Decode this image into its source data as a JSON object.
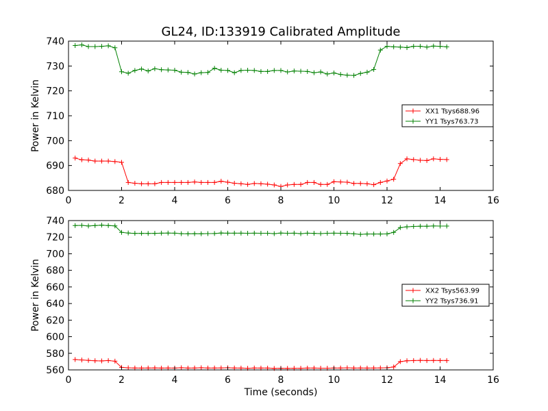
{
  "chart_data": [
    {
      "type": "line",
      "title": "GL24, ID:133919 Calibrated Amplitude",
      "xlabel": "",
      "ylabel": "Power in Kelvin",
      "xlim": [
        0,
        16
      ],
      "ylim": [
        680,
        740
      ],
      "xticks": [
        0,
        2,
        4,
        6,
        8,
        10,
        12,
        14,
        16
      ],
      "yticks": [
        680,
        690,
        700,
        710,
        720,
        730,
        740
      ],
      "legend_position": "center-right",
      "x": [
        0.25,
        0.5,
        0.75,
        1.0,
        1.25,
        1.5,
        1.75,
        2.0,
        2.25,
        2.5,
        2.75,
        3.0,
        3.25,
        3.5,
        3.75,
        4.0,
        4.25,
        4.5,
        4.75,
        5.0,
        5.25,
        5.5,
        5.75,
        6.0,
        6.25,
        6.5,
        6.75,
        7.0,
        7.25,
        7.5,
        7.75,
        8.0,
        8.25,
        8.5,
        8.75,
        9.0,
        9.25,
        9.5,
        9.75,
        10.0,
        10.25,
        10.5,
        10.75,
        11.0,
        11.25,
        11.5,
        11.75,
        12.0,
        12.25,
        12.5,
        12.75,
        13.0,
        13.25,
        13.5,
        13.75,
        14.0,
        14.25
      ],
      "series": [
        {
          "name": "XX1 Tsys688.96",
          "color": "#ff0000",
          "values": [
            693.0,
            692.3,
            692.2,
            691.8,
            691.8,
            691.8,
            691.6,
            691.3,
            683.2,
            682.9,
            682.7,
            682.7,
            682.7,
            683.2,
            683.2,
            683.2,
            683.2,
            683.2,
            683.4,
            683.2,
            683.2,
            683.2,
            683.7,
            683.3,
            682.9,
            682.7,
            682.4,
            682.8,
            682.7,
            682.5,
            682.2,
            681.6,
            682.2,
            682.4,
            682.4,
            683.2,
            683.2,
            682.4,
            682.4,
            683.5,
            683.4,
            683.3,
            682.8,
            682.8,
            682.7,
            682.3,
            683.2,
            683.8,
            684.5,
            690.8,
            692.7,
            692.4,
            692.1,
            692.0,
            692.7,
            692.5,
            692.4
          ]
        },
        {
          "name": "YY1 Tsys763.73",
          "color": "#008000",
          "values": [
            738.2,
            738.5,
            737.8,
            737.8,
            737.9,
            738.1,
            737.3,
            727.7,
            727.1,
            728.2,
            728.8,
            728.0,
            728.9,
            728.5,
            728.4,
            728.3,
            727.5,
            727.4,
            726.8,
            727.3,
            727.4,
            729.1,
            728.3,
            728.2,
            727.3,
            728.2,
            728.3,
            728.2,
            727.8,
            727.8,
            728.2,
            728.2,
            727.6,
            728.0,
            727.9,
            727.8,
            727.3,
            727.6,
            726.8,
            727.2,
            726.6,
            726.3,
            726.2,
            727.0,
            727.5,
            728.6,
            736.4,
            737.9,
            737.7,
            737.6,
            737.4,
            737.9,
            737.9,
            737.6,
            738.0,
            737.9,
            737.7
          ]
        }
      ]
    },
    {
      "type": "line",
      "title": "",
      "xlabel": "Time (seconds)",
      "ylabel": "Power in Kelvin",
      "xlim": [
        0,
        16
      ],
      "ylim": [
        560,
        740
      ],
      "xticks": [
        0,
        2,
        4,
        6,
        8,
        10,
        12,
        14,
        16
      ],
      "yticks": [
        560,
        580,
        600,
        620,
        640,
        660,
        680,
        700,
        720,
        740
      ],
      "legend_position": "center-right",
      "x": [
        0.25,
        0.5,
        0.75,
        1.0,
        1.25,
        1.5,
        1.75,
        2.0,
        2.25,
        2.5,
        2.75,
        3.0,
        3.25,
        3.5,
        3.75,
        4.0,
        4.25,
        4.5,
        4.75,
        5.0,
        5.25,
        5.5,
        5.75,
        6.0,
        6.25,
        6.5,
        6.75,
        7.0,
        7.25,
        7.5,
        7.75,
        8.0,
        8.25,
        8.5,
        8.75,
        9.0,
        9.25,
        9.5,
        9.75,
        10.0,
        10.25,
        10.5,
        10.75,
        11.0,
        11.25,
        11.5,
        11.75,
        12.0,
        12.25,
        12.5,
        12.75,
        13.0,
        13.25,
        13.5,
        13.75,
        14.0,
        14.25
      ],
      "series": [
        {
          "name": "XX2 Tsys563.99",
          "color": "#ff0000",
          "values": [
            572.5,
            572.0,
            571.5,
            571.0,
            570.8,
            571.2,
            570.5,
            563.0,
            562.5,
            562.3,
            562.2,
            562.3,
            562.4,
            562.2,
            562.3,
            562.2,
            562.6,
            562.2,
            562.3,
            562.6,
            562.3,
            562.3,
            562.4,
            562.6,
            562.3,
            562.2,
            562.0,
            562.3,
            562.2,
            562.2,
            561.8,
            562.0,
            561.9,
            562.0,
            562.0,
            562.2,
            562.2,
            562.1,
            562.1,
            562.3,
            562.3,
            562.5,
            562.2,
            562.3,
            562.2,
            562.3,
            562.4,
            562.6,
            563.5,
            570.0,
            571.0,
            571.2,
            571.5,
            571.2,
            571.4,
            571.3,
            571.3
          ]
        },
        {
          "name": "YY2 Tsys736.91",
          "color": "#008000",
          "values": [
            734.0,
            734.2,
            733.5,
            734.0,
            734.5,
            734.0,
            733.6,
            725.8,
            725.0,
            724.6,
            724.6,
            724.5,
            724.6,
            724.8,
            724.9,
            724.8,
            724.2,
            724.1,
            724.2,
            724.1,
            724.3,
            724.4,
            725.0,
            724.8,
            724.8,
            724.8,
            724.7,
            724.8,
            724.7,
            724.7,
            724.2,
            724.9,
            724.7,
            724.8,
            724.2,
            724.8,
            724.6,
            724.3,
            724.7,
            724.8,
            724.7,
            724.6,
            724.0,
            723.4,
            723.8,
            723.8,
            723.8,
            723.9,
            725.8,
            731.5,
            732.5,
            733.0,
            733.2,
            733.2,
            733.5,
            733.4,
            733.4
          ]
        }
      ]
    }
  ]
}
